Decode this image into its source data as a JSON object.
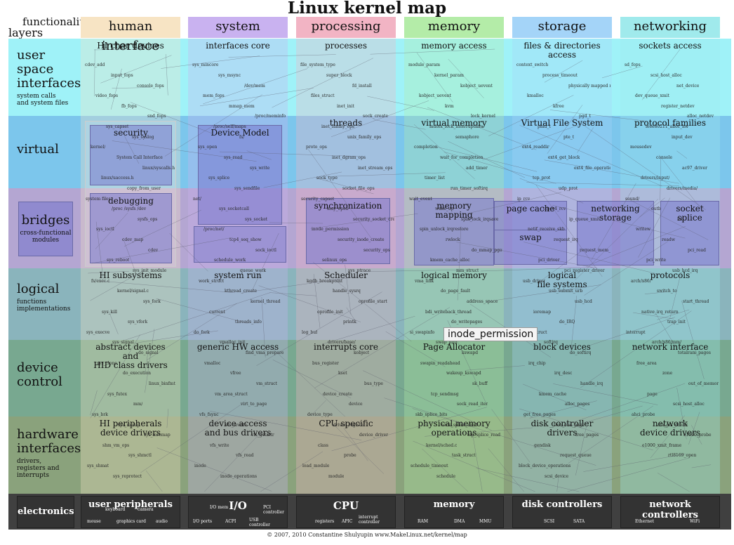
{
  "title": "Linux kernel map",
  "corner": {
    "functionalities": "functionalities",
    "layers": "layers"
  },
  "columns": [
    {
      "label": "human interface",
      "color": "#f7e4c4"
    },
    {
      "label": "system",
      "color": "#c9b2f0"
    },
    {
      "label": "processing",
      "color": "#f2b4c4"
    },
    {
      "label": "memory",
      "color": "#b4eca8"
    },
    {
      "label": "storage",
      "color": "#a4d4f8"
    },
    {
      "label": "networking",
      "color": "#a0eaec"
    }
  ],
  "rows": [
    {
      "name": "user\nspace\ninterfaces",
      "sub": "system calls\nand system files",
      "color": "#9ff2f8"
    },
    {
      "name": "virtual",
      "sub": "",
      "color": "#7cc6ec"
    },
    {
      "name": "bridges",
      "sub": "cross-functional\nmodules",
      "color": "#b4a6d2"
    },
    {
      "name": "logical",
      "sub": "functions\nimplementations",
      "color": "#8ab4bc"
    },
    {
      "name": "device\ncontrol",
      "sub": "",
      "color": "#78a890"
    },
    {
      "name": "hardware\ninterfaces",
      "sub": "drivers,\nregisters and interrupts",
      "color": "#8aa27c"
    }
  ],
  "electronics_label": "electronics",
  "cells": {
    "r0": [
      "HI char devices",
      "interfaces core",
      "processes",
      "memory access",
      "files & directories\naccess",
      "sockets access"
    ],
    "r1": [
      "",
      "",
      "threads",
      "virtual memory",
      "Virtual File System",
      "protocol families"
    ],
    "r3": [
      "HI subsystems",
      "system run",
      "Scheduler",
      "logical memory",
      "logical\nfile systems",
      "protocols"
    ],
    "r4": [
      "abstract devices\nand\nHID class drivers",
      "generic HW access",
      "interrupts core",
      "Page Allocator",
      "block devices",
      "network interface"
    ],
    "r5": [
      "HI peripherals\ndevice drivers",
      "device access\nand bus drivers",
      "CPU specific",
      "physical memory\noperations",
      "disk controller\ndrivers",
      "network\ndevice drivers"
    ]
  },
  "boxes": {
    "security": "security",
    "debugging": "debugging",
    "device_model": "Device Model",
    "synchronization": "synchronization",
    "memory_mapping": "memory\nmapping",
    "page_cache": "page cache",
    "swap": "swap",
    "networking_storage": "networking\nstorage",
    "socket_splice": "socket\nsplice"
  },
  "electronics": [
    {
      "title": "user peripherals",
      "subs": [
        "keyboard",
        "camera",
        "mouse",
        "graphics card",
        "audio"
      ]
    },
    {
      "title": "I/O",
      "subs": [
        "I/O mem",
        "PCI\ncontroller",
        "I/O ports",
        "ACPI",
        "USB\ncontroller"
      ]
    },
    {
      "title": "CPU",
      "subs": [
        "registers",
        "APIC",
        "interrupt\ncontroller"
      ]
    },
    {
      "title": "memory",
      "subs": [
        "RAM",
        "DMA",
        "MMU"
      ]
    },
    {
      "title": "disk controllers",
      "subs": [
        "SCSI",
        "SATA"
      ]
    },
    {
      "title": "network controllers",
      "subs": [
        "Ethernet",
        "WiFi"
      ]
    }
  ],
  "small_labels": [
    "cdev_add",
    "input_fops",
    "console_fops",
    "video_fops",
    "fb_fops",
    "snd_fops",
    "sys_capset",
    "sys_syslog",
    "kernel/",
    "System Call Interface",
    "linux/syscalls.h",
    "linux/uaccess.h",
    "copy_from_user",
    "system files",
    "/proc /sysfs /dev",
    "sysfs_ops",
    "sys_ioctl",
    "cdev_map",
    "cdev",
    "sys_reboot",
    "sys_init_module",
    "fs/exec.c",
    "kernel/signal.c",
    "sys_fork",
    "sys_kill",
    "sys_vfork",
    "sys_execve",
    "sys_signal",
    "do_signal",
    "sys_clone",
    "do_execution",
    "linux_binfmt",
    "sys_futex",
    "mm/",
    "sys_brk",
    "sys_mmap",
    "sys_mremap",
    "shm_vm_ops",
    "sys_shmctl",
    "sys_shmat",
    "sys_reprotect",
    "sys_mincore",
    "sys_msync",
    "/dev/mem",
    "mem_fops",
    "mmap_mem",
    "/proc/meminfo",
    "/proc/self/maps",
    "fs/",
    "sys_open",
    "sys_read",
    "sys_write",
    "sys_splice",
    "sys_sendfile",
    "net/",
    "sys_socketcall",
    "sys_socket",
    "/proc/net/",
    "tcp4_seq_show",
    "sock_ioctl",
    "schedule_work",
    "queue_work",
    "work_struct",
    "kthread_create",
    "kernel_thread",
    "current",
    "threads_info",
    "do_fork",
    "vmalloc_init",
    "find_vma_prepare",
    "vmalloc",
    "vfree",
    "vm_struct",
    "vm_area_struct",
    "virt_to_page",
    "vfs_fsync",
    "vfs_create",
    "vfs_getattr",
    "vfs_write",
    "vfs_read",
    "inode",
    "inode_operations",
    "file_system_type",
    "super_block",
    "fd_install",
    "files_struct",
    "inet_init",
    "sock_create",
    "inet_family_ops",
    "unix_family_ops",
    "proto_ops",
    "inet_dgram_ops",
    "inet_stream_ops",
    "sock_type",
    "socket_file_ops",
    "security_capset",
    "may_open",
    "security_socket_create",
    "inode_permission",
    "security_inode_create",
    "security_ops",
    "selinux_ops",
    "sys_ptrace",
    "kgdb_breakpoint",
    "handle_sysrq",
    "oprofile_start",
    "oprofile_init",
    "printk",
    "log_buf",
    "drivers/base/",
    "kobject",
    "bus_register",
    "kset",
    "bus_type",
    "device_create",
    "device",
    "device_type",
    "driver_register",
    "device_driver",
    "class",
    "probe",
    "load_module",
    "module",
    "module_param",
    "kernel_param",
    "kobject_uevent",
    "kobject_uevent",
    "kvm",
    "lock_kernel",
    "mutex_lock_interruptible",
    "semaphore",
    "completion",
    "wait_for_completion",
    "add_timer",
    "timer_list",
    "run_timer_softirq",
    "wait_event",
    "wake_up",
    "spin_lock_irqsave",
    "spin_unlock_irqrestore",
    "rwlock",
    "do_mmap_pgoff",
    "kmem_cache_alloc",
    "mm_struct",
    "vma_link",
    "do_page_fault",
    "address_space",
    "bdi_writeback_thread",
    "do_writepages",
    "si_swapinfo",
    "swap_info",
    "kswapd",
    "swapin_readahead",
    "wakeup_kswapd",
    "sk_buff",
    "tcp_sendmsg",
    "sock_read_iter",
    "skb_splice_bits",
    "sock_splice_read",
    "tcp_splice_read",
    "kernel/sched.c",
    "task_struct",
    "schedule_timeout",
    "schedule",
    "context_switch",
    "process_timeout",
    "physically mapped memory",
    "kmalloc",
    "kfree",
    "pgd_t",
    "pmd_t",
    "pte_t",
    "ext4_readdir",
    "ext4_get_block",
    "ext4_file_operations",
    "tcp_prot",
    "udp_prot",
    "ip_rcv",
    "tcp_v4_rcv",
    "ip_queue_xmit",
    "netif_receive_skb",
    "request_irq",
    "request_mem_region",
    "pci_driver",
    "pci_register_driver",
    "usb_driver",
    "usb_submit_urb",
    "usb_hcd",
    "ioremap",
    "do_IRQ",
    "tasklet_struct",
    "softirq",
    "do_softirq",
    "irq_chip",
    "irq_desc",
    "handle_irq",
    "kmem_cache",
    "alloc_pages",
    "get_free_pages",
    "__free_one_page",
    "free_pages",
    "gendisk",
    "request_queue",
    "block_device_operations",
    "scsi_device",
    "sd_fops",
    "scsi_host_alloc",
    "net_device",
    "dev_queue_xmit",
    "register_netdev",
    "alloc_netdev",
    "ieee80211_alloc_hw",
    "input_dev",
    "mousedev",
    "console",
    "ac97_driver",
    "drivers/input/",
    "drivers/media/",
    "sound/",
    "outb",
    "inb",
    "writew",
    "readw",
    "pci_read",
    "pci_write",
    "usb_hcd_irq",
    "arch/x86/",
    "switch_to",
    "start_thread",
    "native_irq_return",
    "trap_init",
    "interrupt",
    "arch/x86/mm/",
    "totalram_pages",
    "free_area",
    "zone",
    "out_of_memory",
    "page",
    "scsi_host_alloc",
    "ahci_probe",
    "ata_pci_driver",
    "e1000_probe",
    "e1000_xmit_frame",
    "rtl8169_open"
  ],
  "tooltip": "inode_permission",
  "footer": "© 2007, 2010 Constantine Shulyupin www.MakeLinux.net/kernel/map"
}
